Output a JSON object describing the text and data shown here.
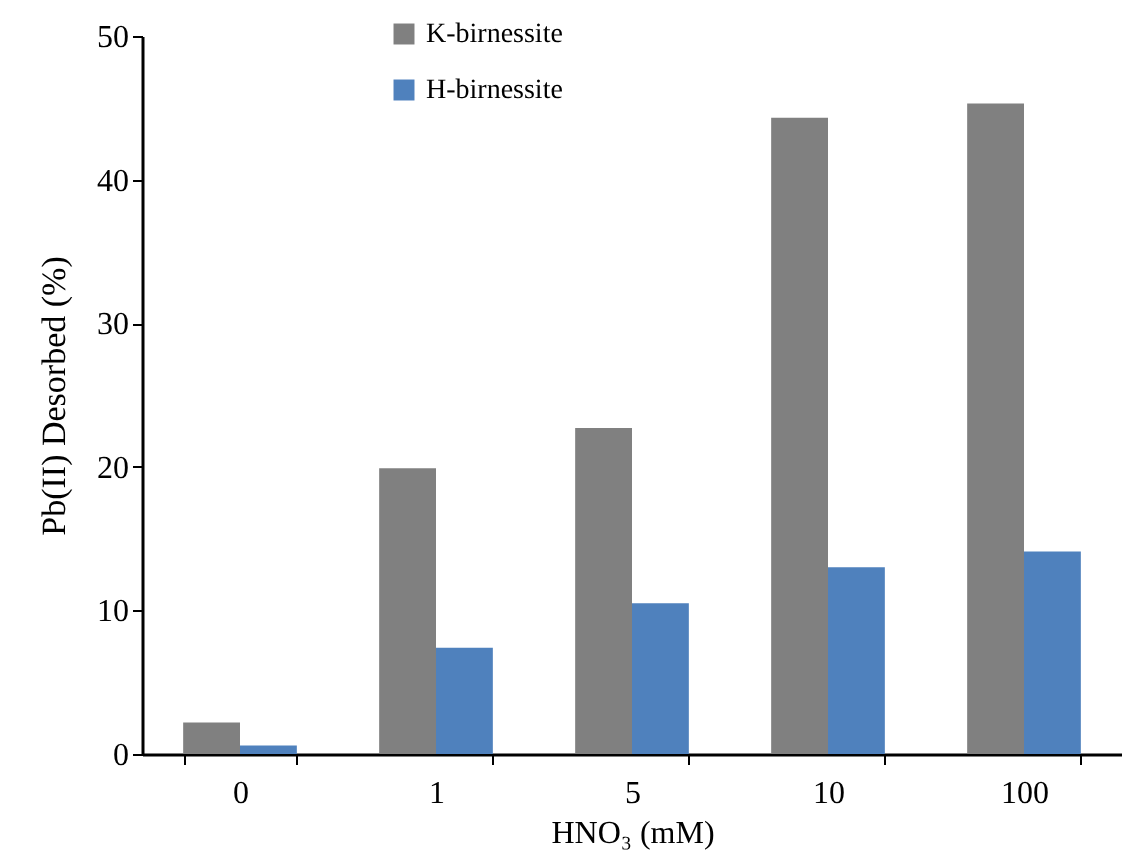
{
  "chart_data": {
    "type": "bar",
    "xlabel": "HNO₃ (mM)",
    "ylabel": "Pb(II) Desorbed (%)",
    "categories": [
      "0",
      "1",
      "5",
      "10",
      "100"
    ],
    "series": [
      {
        "name": "K-birnessite",
        "color": "#808080",
        "values": [
          2.2,
          19.9,
          22.7,
          44.3,
          45.3
        ]
      },
      {
        "name": "H-birnessite",
        "color": "#4f81bd",
        "values": [
          0.6,
          7.4,
          10.5,
          13.0,
          14.1
        ]
      }
    ],
    "ylim": [
      0,
      50
    ],
    "yticks": [
      0,
      10,
      20,
      30,
      40,
      50
    ],
    "grid": false,
    "legend": "top"
  }
}
